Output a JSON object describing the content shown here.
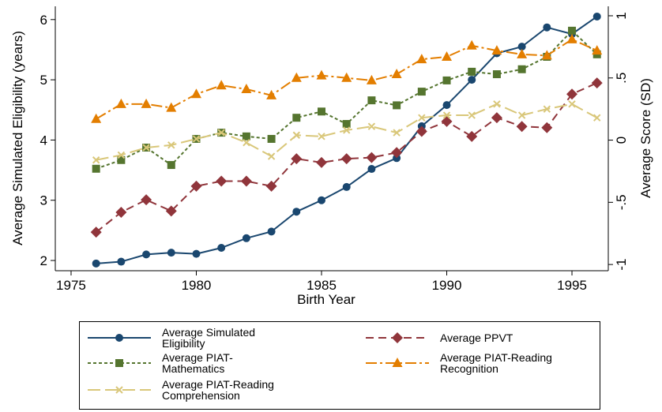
{
  "chart_data": {
    "type": "line",
    "xlabel": "Birth Year",
    "ylabel": "Average Simulated Eligibility (years)",
    "y2label": "Average Score (SD)",
    "x": [
      1976,
      1977,
      1978,
      1979,
      1980,
      1981,
      1982,
      1983,
      1984,
      1985,
      1986,
      1987,
      1988,
      1989,
      1990,
      1991,
      1992,
      1993,
      1994,
      1995,
      1996
    ],
    "xlim": [
      1974.37,
      1996.45
    ],
    "xticks": [
      1975,
      1980,
      1985,
      1990,
      1995
    ],
    "ylim": [
      1.83,
      6.22
    ],
    "yticks": [
      2,
      3,
      4,
      5,
      6
    ],
    "y2lim": [
      -1.05,
      1.076
    ],
    "y2ticks": [
      {
        "value": -1,
        "label": "-1"
      },
      {
        "value": -0.5,
        "label": "-.5"
      },
      0,
      {
        "value": 0.5,
        "label": ".5"
      },
      1
    ],
    "series": [
      {
        "name": "Average Simulated Eligibility",
        "color": "#1a476f",
        "marker": "circle",
        "dash": "none",
        "axis": "y",
        "values": [
          1.95,
          1.98,
          2.1,
          2.13,
          2.11,
          2.21,
          2.37,
          2.48,
          2.81,
          3.0,
          3.22,
          3.52,
          3.7,
          4.23,
          4.58,
          5.0,
          5.44,
          5.55,
          5.87,
          5.76,
          6.05
        ]
      },
      {
        "name": "Average PPVT",
        "color": "#90353b",
        "marker": "diamond",
        "dash": "10 6",
        "axis": "y2",
        "values": [
          -0.74,
          -0.58,
          -0.48,
          -0.57,
          -0.37,
          -0.33,
          -0.33,
          -0.37,
          -0.15,
          -0.18,
          -0.15,
          -0.14,
          -0.1,
          0.07,
          0.15,
          0.03,
          0.18,
          0.11,
          0.1,
          0.37,
          0.46
        ]
      },
      {
        "name": "Average PIAT-Mathematics",
        "color": "#55752f",
        "marker": "square",
        "dash": "4 3",
        "axis": "y2",
        "values": [
          -0.23,
          -0.16,
          -0.06,
          -0.2,
          0.01,
          0.06,
          0.03,
          0.01,
          0.18,
          0.23,
          0.13,
          0.32,
          0.28,
          0.39,
          0.48,
          0.55,
          0.53,
          0.57,
          0.67,
          0.88,
          0.69
        ]
      },
      {
        "name": "Average PIAT-Reading Recognition",
        "color": "#e37e00",
        "marker": "triangle",
        "dash": "14 4 3 4",
        "axis": "y2",
        "values": [
          0.17,
          0.29,
          0.29,
          0.26,
          0.37,
          0.44,
          0.41,
          0.36,
          0.5,
          0.52,
          0.5,
          0.48,
          0.53,
          0.65,
          0.67,
          0.76,
          0.72,
          0.69,
          0.68,
          0.81,
          0.72
        ]
      },
      {
        "name": "Average PIAT-Reading Comprehension",
        "color": "#d9c77a",
        "marker": "x",
        "dash": "16 6",
        "axis": "y2",
        "values": [
          -0.16,
          -0.12,
          -0.06,
          -0.04,
          0.01,
          0.06,
          -0.02,
          -0.13,
          0.04,
          0.03,
          0.08,
          0.11,
          0.06,
          0.18,
          0.2,
          0.2,
          0.29,
          0.2,
          0.25,
          0.29,
          0.18
        ]
      }
    ]
  }
}
